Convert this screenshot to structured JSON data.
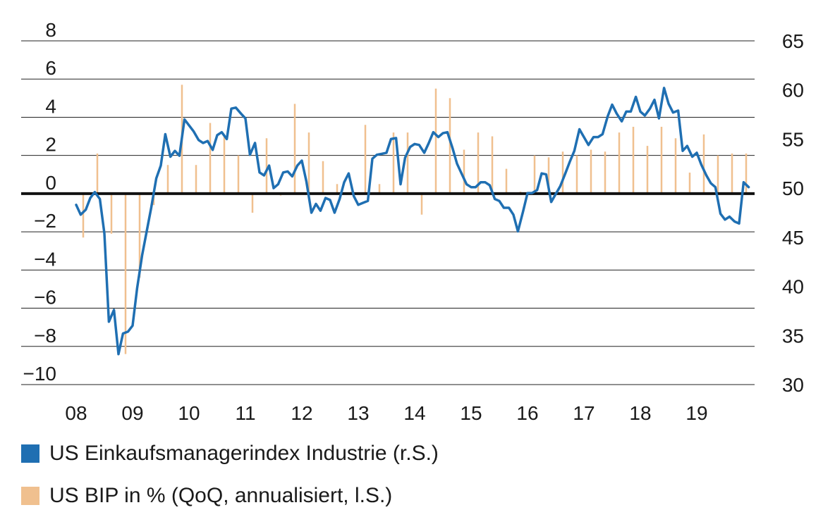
{
  "chart_data": {
    "type": "bar+line",
    "x_tick_labels": [
      "08",
      "09",
      "10",
      "11",
      "12",
      "13",
      "14",
      "15",
      "16",
      "17",
      "18",
      "19"
    ],
    "left_axis": {
      "ticks": [
        8,
        6,
        4,
        2,
        0,
        -2,
        -4,
        -6,
        -8,
        -10
      ],
      "tick_labels": [
        "8",
        "6",
        "4",
        "2",
        "0",
        "−2",
        "−4",
        "−6",
        "−8",
        "−10"
      ],
      "range": [
        -10,
        8
      ]
    },
    "right_axis": {
      "ticks": [
        65,
        60,
        55,
        50,
        45,
        40,
        35,
        30
      ],
      "tick_labels": [
        "65",
        "60",
        "55",
        "50",
        "45",
        "40",
        "35",
        "30"
      ],
      "range": [
        30,
        65
      ]
    },
    "gridlines": true,
    "legend_position": "bottom-left",
    "series": [
      {
        "name": "US Einkaufsmanagerindex Industrie (r.S.)",
        "axis": "right",
        "chart_type": "line",
        "color": "#1f6fb2",
        "x": [
          2008.0,
          2008.08,
          2008.17,
          2008.25,
          2008.33,
          2008.42,
          2008.5,
          2008.58,
          2008.67,
          2008.75,
          2008.83,
          2008.92,
          2009.0,
          2009.08,
          2009.17,
          2009.25,
          2009.33,
          2009.42,
          2009.5,
          2009.58,
          2009.67,
          2009.75,
          2009.83,
          2009.92,
          2010.0,
          2010.08,
          2010.17,
          2010.25,
          2010.33,
          2010.42,
          2010.5,
          2010.58,
          2010.67,
          2010.75,
          2010.83,
          2010.92,
          2011.0,
          2011.08,
          2011.17,
          2011.25,
          2011.33,
          2011.42,
          2011.5,
          2011.58,
          2011.67,
          2011.75,
          2011.83,
          2011.92,
          2012.0,
          2012.08,
          2012.17,
          2012.25,
          2012.33,
          2012.42,
          2012.5,
          2012.58,
          2012.67,
          2012.75,
          2012.83,
          2012.92,
          2013.0,
          2013.08,
          2013.17,
          2013.25,
          2013.33,
          2013.42,
          2013.5,
          2013.58,
          2013.67,
          2013.75,
          2013.83,
          2013.92,
          2014.0,
          2014.08,
          2014.17,
          2014.25,
          2014.33,
          2014.42,
          2014.5,
          2014.58,
          2014.67,
          2014.75,
          2014.83,
          2014.92,
          2015.0,
          2015.08,
          2015.17,
          2015.25,
          2015.33,
          2015.42,
          2015.5,
          2015.58,
          2015.67,
          2015.75,
          2015.83,
          2015.92,
          2016.0,
          2016.08,
          2016.17,
          2016.25,
          2016.33,
          2016.42,
          2016.5,
          2016.58,
          2016.67,
          2016.75,
          2016.83,
          2016.92,
          2017.0,
          2017.08,
          2017.17,
          2017.25,
          2017.33,
          2017.42,
          2017.5,
          2017.58,
          2017.67,
          2017.75,
          2017.83,
          2017.92,
          2018.0,
          2018.08,
          2018.17,
          2018.25,
          2018.33,
          2018.42,
          2018.5,
          2018.58,
          2018.67,
          2018.75,
          2018.83,
          2018.92,
          2019.0,
          2019.08,
          2019.17,
          2019.25,
          2019.33,
          2019.42,
          2019.5,
          2019.58,
          2019.67,
          2019.75,
          2019.83,
          2019.92
        ],
        "values": [
          48.3,
          47.3,
          47.8,
          49.0,
          49.6,
          48.9,
          45.4,
          36.4,
          37.6,
          33.1,
          35.2,
          35.4,
          36.0,
          39.8,
          43.2,
          45.6,
          48.0,
          51.0,
          52.3,
          55.5,
          53.2,
          53.8,
          53.3,
          57.0,
          56.4,
          55.8,
          54.9,
          54.6,
          54.8,
          53.9,
          55.4,
          55.7,
          55.0,
          58.1,
          58.2,
          57.6,
          57.1,
          53.4,
          54.6,
          51.6,
          51.3,
          52.3,
          50.0,
          50.4,
          51.6,
          51.7,
          51.2,
          52.3,
          52.8,
          50.7,
          47.5,
          48.4,
          47.7,
          49.0,
          48.8,
          47.5,
          48.9,
          50.6,
          51.5,
          49.2,
          48.3,
          48.5,
          48.7,
          53.0,
          53.4,
          53.5,
          53.6,
          55.0,
          55.1,
          50.4,
          53.1,
          54.2,
          54.5,
          54.4,
          53.6,
          54.6,
          55.7,
          55.2,
          55.6,
          55.7,
          54.1,
          52.5,
          51.5,
          50.4,
          50.1,
          50.1,
          50.6,
          50.6,
          50.3,
          48.9,
          48.7,
          48.0,
          48.0,
          47.3,
          45.6,
          47.6,
          49.5,
          49.5,
          49.8,
          51.5,
          51.4,
          48.6,
          49.4,
          50.2,
          51.5,
          52.7,
          53.8,
          56.0,
          55.2,
          54.4,
          55.2,
          55.2,
          55.5,
          57.3,
          58.5,
          57.6,
          56.8,
          57.8,
          57.8,
          59.3,
          57.8,
          57.4,
          58.1,
          59.0,
          57.1,
          60.2,
          58.6,
          57.7,
          57.9,
          53.8,
          54.3,
          53.2,
          53.6,
          52.4,
          51.3,
          50.5,
          50.1,
          47.4,
          46.8,
          47.1,
          46.6,
          46.4,
          50.6,
          50.1
        ]
      },
      {
        "name": "US BIP in % (QoQ, annualisiert, l.S.)",
        "axis": "left",
        "chart_type": "bar",
        "color": "#f0c08f",
        "x": [
          2008.125,
          2008.375,
          2008.625,
          2008.875,
          2009.125,
          2009.375,
          2009.625,
          2009.875,
          2010.125,
          2010.375,
          2010.625,
          2010.875,
          2011.125,
          2011.375,
          2011.625,
          2011.875,
          2012.125,
          2012.375,
          2012.625,
          2012.875,
          2013.125,
          2013.375,
          2013.625,
          2013.875,
          2014.125,
          2014.375,
          2014.625,
          2014.875,
          2015.125,
          2015.375,
          2015.625,
          2015.875,
          2016.125,
          2016.375,
          2016.625,
          2016.875,
          2017.125,
          2017.375,
          2017.625,
          2017.875,
          2018.125,
          2018.375,
          2018.625,
          2018.875,
          2019.125,
          2019.375,
          2019.625,
          2019.875
        ],
        "values": [
          -2.3,
          2.1,
          -2.1,
          -8.4,
          -4.4,
          -0.6,
          1.5,
          5.7,
          1.5,
          3.7,
          3.0,
          2.0,
          -1.0,
          2.9,
          -0.1,
          4.7,
          3.2,
          1.7,
          0.5,
          0.1,
          3.6,
          0.5,
          3.2,
          3.2,
          -1.1,
          5.5,
          5.0,
          2.3,
          3.2,
          3.0,
          1.3,
          0.1,
          2.0,
          1.9,
          2.2,
          2.0,
          2.3,
          2.2,
          3.2,
          3.5,
          2.5,
          3.5,
          2.9,
          1.1,
          3.1,
          2.0,
          2.1,
          2.1
        ]
      }
    ]
  },
  "legend": [
    {
      "label": "US Einkaufsmanagerindex Industrie (r.S.)",
      "color": "#1f6fb2"
    },
    {
      "label": "US BIP in % (QoQ, annualisiert, l.S.)",
      "color": "#f0c08f"
    }
  ]
}
